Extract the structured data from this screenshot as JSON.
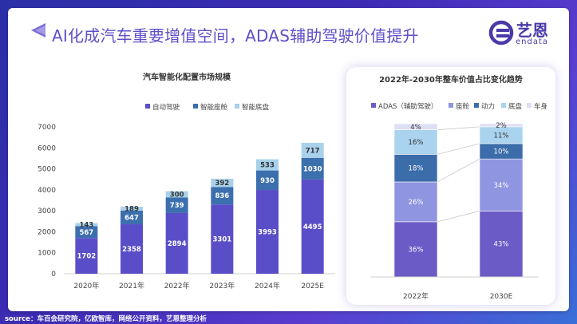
{
  "headline": "AI化成汽车重要增值空间，ADAS辅助驾驶价值提升",
  "logo": {
    "cn": "艺恩",
    "en": "endata"
  },
  "source": "source：车百会研究院，亿欧智库，网络公开资料，艺恩整理分析",
  "colors": {
    "dark": "#5a4ec8",
    "mid": "#3c6fae",
    "light": "#a8d1ec",
    "adas": "#6a5bc6",
    "seat": "#8f95e0",
    "power": "#3b6daa",
    "chassis": "#a9d3ee",
    "body": "#dddff5",
    "accent": "#5d4fc9"
  },
  "chart_data": [
    {
      "type": "bar",
      "stacked": true,
      "title": "汽车智能化配置市场规模",
      "categories": [
        "2020年",
        "2021年",
        "2022年",
        "2023年",
        "2024年",
        "2025E"
      ],
      "series": [
        {
          "name": "自动驾驶",
          "values": [
            1702,
            2358,
            2894,
            3301,
            3993,
            4495
          ]
        },
        {
          "name": "智能座舱",
          "values": [
            567,
            647,
            739,
            836,
            930,
            1030
          ]
        },
        {
          "name": "智能底盘",
          "values": [
            143,
            189,
            300,
            392,
            533,
            717
          ]
        }
      ],
      "ylim": [
        0,
        7000
      ],
      "yticks": [
        0,
        1000,
        2000,
        3000,
        4000,
        5000,
        6000,
        7000
      ],
      "legend": "top",
      "grid": false
    },
    {
      "type": "bar",
      "stacked": true,
      "percent": true,
      "title": "2022年-2030年整车价值占比变化趋势",
      "categories": [
        "2022年",
        "2030E"
      ],
      "series": [
        {
          "name": "ADAS（辅助驾驶）",
          "values": [
            36,
            43
          ]
        },
        {
          "name": "座舱",
          "values": [
            26,
            34
          ]
        },
        {
          "name": "动力",
          "values": [
            18,
            10
          ]
        },
        {
          "name": "底盘",
          "values": [
            16,
            11
          ]
        },
        {
          "name": "车身",
          "values": [
            4,
            2
          ]
        }
      ],
      "value_suffix": "%",
      "legend": "top",
      "grid": false
    }
  ]
}
